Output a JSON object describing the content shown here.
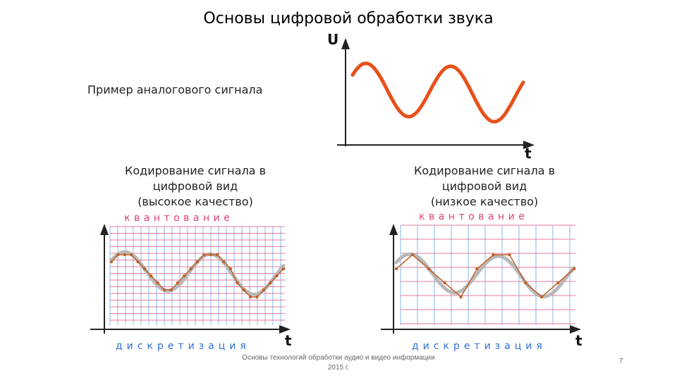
{
  "slide": {
    "title": "Основы цифровой обработки звука",
    "analog_caption": "Пример аналогового сигнала",
    "encoding_high_title": [
      "Кодирование сигнала в",
      "цифровой вид",
      "(высокое качество)"
    ],
    "encoding_low_title": [
      "Кодирование сигнала в",
      "цифровой вид",
      "(низкое качество)"
    ],
    "quantization_label": "квантование",
    "sampling_label": "дискретизация",
    "axis_u": "U",
    "axis_t": "t",
    "footer_line1": "Основы технологий обработки аудио и видео информации",
    "footer_line2": "2015 г.",
    "page_number": "7"
  },
  "colors": {
    "analog_signal": "#e8501a",
    "grid_vertical": "#7fb7e8",
    "grid_horizontal": "#e57a9a",
    "smooth_signal": "#b8b8b8",
    "digital_signal": "#c0602a",
    "quantization_text": "#e0407a",
    "sampling_text": "#2e6fd6"
  }
}
